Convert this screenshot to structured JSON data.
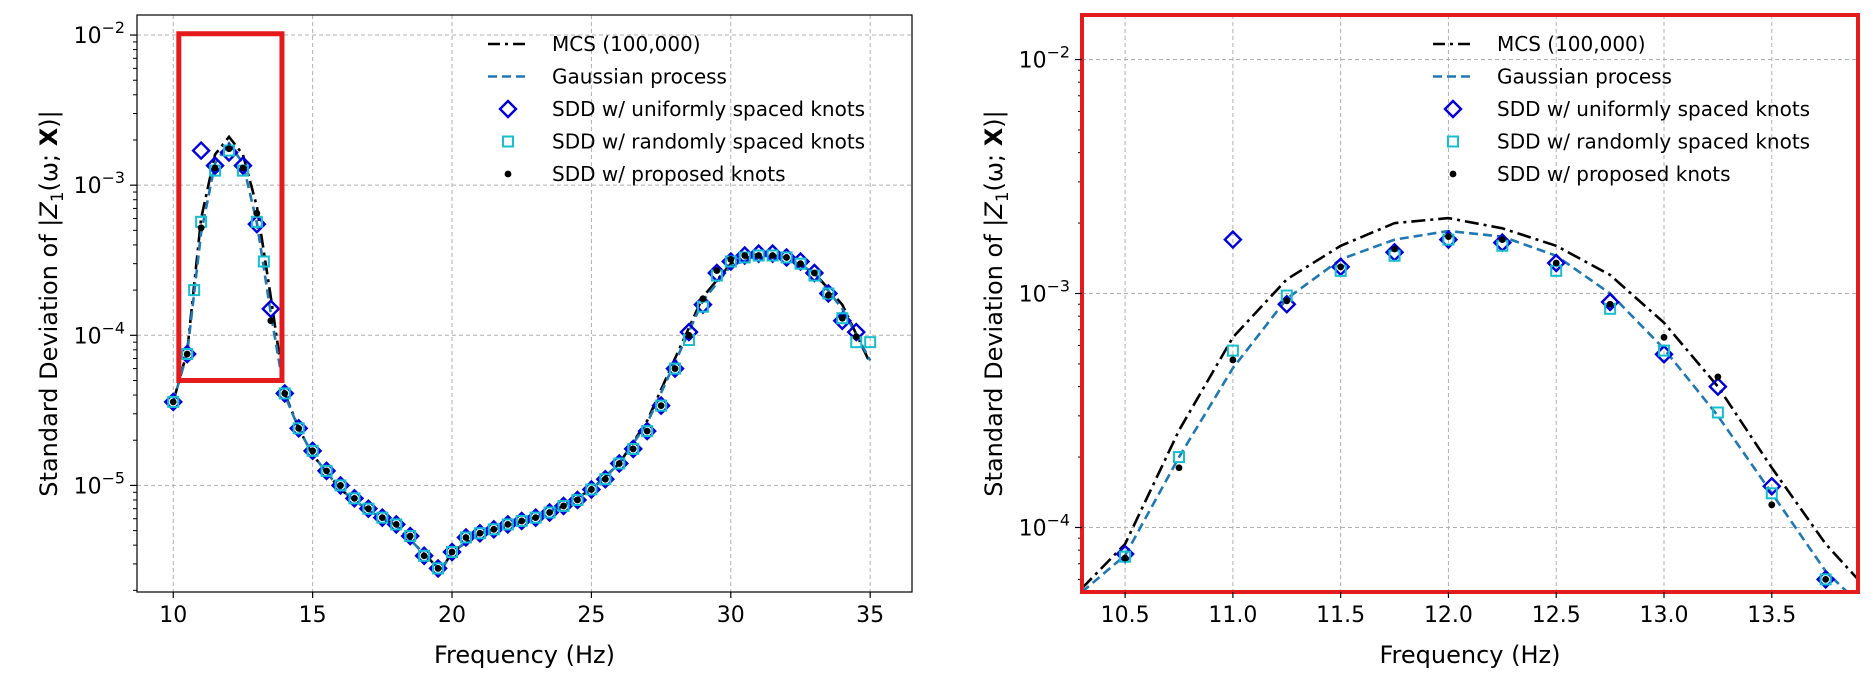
{
  "chart_data": [
    {
      "type": "line",
      "title": "",
      "xlabel": "Frequency (Hz)",
      "ylabel": "Standard Deviation of |Z_1(ω; X)|",
      "ylabel_parts": {
        "prefix": "Standard Deviation of |",
        "var": "Z",
        "sub": "1",
        "mid": "(ω; ",
        "bold": "X",
        "suffix": ")|"
      },
      "y_scale": "log",
      "xlim": [
        8.7,
        36.5
      ],
      "ylim": [
        1.95e-06,
        0.0136
      ],
      "x_ticks": [
        10,
        15,
        20,
        25,
        30,
        35
      ],
      "x_tick_labels": [
        "10",
        "15",
        "20",
        "25",
        "30",
        "35"
      ],
      "y_ticks": [
        1e-05,
        0.0001,
        0.001,
        0.01
      ],
      "y_tick_labels": [
        {
          "base": "10",
          "exp": "−5"
        },
        {
          "base": "10",
          "exp": "−4"
        },
        {
          "base": "10",
          "exp": "−3"
        },
        {
          "base": "10",
          "exp": "−2"
        }
      ],
      "grid": true,
      "legend_position": "top-center",
      "zoom_box": {
        "x": [
          10.2,
          13.9
        ],
        "y": [
          5e-05,
          0.0102
        ],
        "color": "#e41a1c"
      },
      "series": [
        {
          "name": "MCS (100,000)",
          "kind": "line",
          "style": "dashdot",
          "color": "#000000",
          "x": [
            10,
            10.5,
            11,
            11.5,
            12,
            12.5,
            13,
            13.5,
            14,
            14.5,
            15,
            16,
            17,
            18,
            19,
            19.6,
            20,
            21,
            22,
            23,
            24,
            25,
            26,
            27,
            28,
            29,
            30,
            31,
            32,
            33,
            34,
            35
          ],
          "y": [
            3.6e-05,
            7.8e-05,
            0.0006,
            0.0016,
            0.0021,
            0.0016,
            0.00072,
            0.00018,
            4.1e-05,
            2.4e-05,
            1.6e-05,
            9.4e-06,
            6.8e-06,
            5.4e-06,
            3.5e-06,
            2.7e-06,
            3.6e-06,
            4.8e-06,
            5.4e-06,
            6.1e-06,
            7.3e-06,
            9.4e-06,
            1.4e-05,
            2.7e-05,
            7e-05,
            0.00018,
            0.0003,
            0.00035,
            0.00033,
            0.00026,
            0.00016,
            6.5e-05
          ]
        },
        {
          "name": "Gaussian process",
          "kind": "line",
          "style": "dashed",
          "color": "#1f77b4",
          "x": [
            10,
            10.5,
            11,
            11.5,
            12,
            12.5,
            13,
            13.5,
            14,
            14.5,
            15,
            16,
            17,
            18,
            19,
            19.6,
            20,
            21,
            22,
            23,
            24,
            25,
            26,
            27,
            28,
            29,
            30,
            31,
            32,
            33,
            34,
            35
          ],
          "y": [
            3.6e-05,
            7.6e-05,
            0.00048,
            0.0014,
            0.0019,
            0.0014,
            0.00056,
            0.00014,
            4e-05,
            2.4e-05,
            1.6e-05,
            9.4e-06,
            6.8e-06,
            5.4e-06,
            3.5e-06,
            2.7e-06,
            3.6e-06,
            4.8e-06,
            5.4e-06,
            6.1e-06,
            7.3e-06,
            9.4e-06,
            1.4e-05,
            2.6e-05,
            6.6e-05,
            0.00017,
            0.00029,
            0.00034,
            0.00033,
            0.00026,
            0.00015,
            6.8e-05
          ]
        },
        {
          "name": "SDD w/ uniformly spaced knots",
          "kind": "marker",
          "marker": "diamond",
          "color": "#0000dd",
          "x": [
            10,
            10.5,
            11,
            11.5,
            12,
            12.5,
            13,
            13.5,
            14,
            14.5,
            15,
            15.5,
            16,
            16.5,
            17,
            17.5,
            18,
            18.5,
            19,
            19.5,
            20,
            20.5,
            21,
            21.5,
            22,
            22.5,
            23,
            23.5,
            24,
            24.5,
            25,
            25.5,
            26,
            26.5,
            27,
            27.5,
            28,
            28.5,
            29,
            29.5,
            30,
            30.5,
            31,
            31.5,
            32,
            32.5,
            33,
            33.5,
            34,
            34.5
          ],
          "y": [
            3.6e-05,
            7.5e-05,
            0.0017,
            0.00135,
            0.00165,
            0.00135,
            0.00055,
            0.00015,
            4.1e-05,
            2.4e-05,
            1.7e-05,
            1.25e-05,
            1e-05,
            8.2e-06,
            7e-06,
            6.1e-06,
            5.5e-06,
            4.6e-06,
            3.4e-06,
            2.8e-06,
            3.6e-06,
            4.5e-06,
            4.8e-06,
            5.1e-06,
            5.5e-06,
            5.8e-06,
            6.1e-06,
            6.6e-06,
            7.3e-06,
            8e-06,
            9.4e-06,
            1.1e-05,
            1.4e-05,
            1.75e-05,
            2.3e-05,
            3.4e-05,
            6e-05,
            0.000105,
            0.00016,
            0.00026,
            0.00031,
            0.00034,
            0.00035,
            0.00035,
            0.00033,
            0.00031,
            0.00026,
            0.00019,
            0.000125,
            0.000105
          ]
        },
        {
          "name": "SDD w/ randomly spaced knots",
          "kind": "marker",
          "marker": "square",
          "color": "#17becf",
          "x": [
            10,
            10.5,
            10.75,
            11,
            11.5,
            12,
            12.5,
            13,
            13.25,
            14,
            14.5,
            15,
            15.5,
            16,
            16.5,
            17,
            17.5,
            18,
            18.5,
            19,
            19.5,
            20,
            20.5,
            21,
            21.5,
            22,
            22.5,
            23,
            23.5,
            24,
            24.5,
            25,
            25.5,
            26,
            26.5,
            27,
            27.5,
            28,
            28.5,
            29,
            29.5,
            30,
            30.5,
            31,
            31.5,
            32,
            32.5,
            33,
            33.5,
            34,
            34.5,
            35
          ],
          "y": [
            3.6e-05,
            7.5e-05,
            0.0002,
            0.00057,
            0.00125,
            0.0017,
            0.00125,
            0.00057,
            0.00031,
            4.1e-05,
            2.4e-05,
            1.7e-05,
            1.25e-05,
            1e-05,
            8.2e-06,
            7e-06,
            6.1e-06,
            5.5e-06,
            4.6e-06,
            3.4e-06,
            2.8e-06,
            3.6e-06,
            4.5e-06,
            4.8e-06,
            5.1e-06,
            5.5e-06,
            5.8e-06,
            6.1e-06,
            6.6e-06,
            7.3e-06,
            8e-06,
            9.4e-06,
            1.1e-05,
            1.4e-05,
            1.75e-05,
            2.3e-05,
            3.4e-05,
            6e-05,
            9.3e-05,
            0.000155,
            0.00025,
            0.00031,
            0.00033,
            0.00034,
            0.00034,
            0.00033,
            0.0003,
            0.00025,
            0.00019,
            0.00013,
            9e-05,
            9e-05
          ]
        },
        {
          "name": "SDD w/ proposed knots",
          "kind": "marker",
          "marker": "dot",
          "color": "#000000",
          "x": [
            10,
            10.5,
            11,
            11.5,
            12,
            12.5,
            13,
            13.5,
            14,
            14.5,
            15,
            15.5,
            16,
            16.5,
            17,
            17.5,
            18,
            18.5,
            19,
            19.5,
            20,
            20.5,
            21,
            21.5,
            22,
            22.5,
            23,
            23.5,
            24,
            24.5,
            25,
            25.5,
            26,
            26.5,
            27,
            27.5,
            28,
            28.5,
            29,
            29.5,
            30,
            30.5,
            31,
            31.5,
            32,
            32.5,
            33,
            33.5,
            34,
            34.5
          ],
          "y": [
            3.6e-05,
            7.5e-05,
            0.00052,
            0.0013,
            0.00175,
            0.0013,
            0.00065,
            0.000125,
            4.1e-05,
            2.4e-05,
            1.7e-05,
            1.25e-05,
            1e-05,
            8.2e-06,
            7e-06,
            6.1e-06,
            5.5e-06,
            4.6e-06,
            3.4e-06,
            2.8e-06,
            3.6e-06,
            4.5e-06,
            4.8e-06,
            5.1e-06,
            5.5e-06,
            5.8e-06,
            6.1e-06,
            6.6e-06,
            7.3e-06,
            8e-06,
            9.4e-06,
            1.1e-05,
            1.4e-05,
            1.75e-05,
            2.3e-05,
            3.4e-05,
            6e-05,
            0.0001,
            0.000175,
            0.00027,
            0.00032,
            0.00034,
            0.00034,
            0.00034,
            0.00033,
            0.0003,
            0.00026,
            0.000185,
            0.00013,
            9.8e-05
          ]
        }
      ]
    },
    {
      "type": "line",
      "title": "",
      "xlabel": "Frequency (Hz)",
      "ylabel": "Standard Deviation of |Z_1(ω; X)|",
      "ylabel_parts": {
        "prefix": "Standard Deviation of |",
        "var": "Z",
        "sub": "1",
        "mid": "(ω; ",
        "bold": "X",
        "suffix": ")|"
      },
      "y_scale": "log",
      "xlim": [
        10.3,
        13.9
      ],
      "ylim": [
        5.3e-05,
        0.0155
      ],
      "x_ticks": [
        10.5,
        11,
        11.5,
        12,
        12.5,
        13,
        13.5
      ],
      "x_tick_labels": [
        "10.5",
        "11.0",
        "11.5",
        "12.0",
        "12.5",
        "13.0",
        "13.5"
      ],
      "y_ticks": [
        0.0001,
        0.001,
        0.01
      ],
      "y_tick_labels": [
        {
          "base": "10",
          "exp": "−4"
        },
        {
          "base": "10",
          "exp": "−3"
        },
        {
          "base": "10",
          "exp": "−2"
        }
      ],
      "grid": true,
      "legend_position": "top-center",
      "frame_color": "#e41a1c",
      "series": [
        {
          "name": "MCS (100,000)",
          "kind": "line",
          "style": "dashdot",
          "color": "#000000",
          "x": [
            10.3,
            10.5,
            10.75,
            11,
            11.25,
            11.5,
            11.75,
            12,
            12.25,
            12.5,
            12.75,
            13,
            13.25,
            13.5,
            13.75,
            13.9
          ],
          "y": [
            5.5e-05,
            8.5e-05,
            0.00026,
            0.00065,
            0.00115,
            0.0016,
            0.002,
            0.0021,
            0.0019,
            0.0016,
            0.0012,
            0.00075,
            0.0004,
            0.00018,
            8.5e-05,
            6e-05
          ]
        },
        {
          "name": "Gaussian process",
          "kind": "line",
          "style": "dashed",
          "color": "#1f77b4",
          "x": [
            10.3,
            10.5,
            10.75,
            11,
            11.25,
            11.5,
            11.75,
            12,
            12.25,
            12.5,
            12.75,
            13,
            13.25,
            13.5,
            13.75,
            13.85
          ],
          "y": [
            5.3e-05,
            7.6e-05,
            0.0002,
            0.00048,
            0.00095,
            0.0014,
            0.0017,
            0.00185,
            0.00175,
            0.00145,
            0.001,
            0.00058,
            0.0003,
            0.00014,
            6.5e-05,
            5.3e-05
          ]
        },
        {
          "name": "SDD w/ uniformly spaced knots",
          "kind": "marker",
          "marker": "diamond",
          "color": "#0000dd",
          "x": [
            10.5,
            11,
            11.25,
            11.5,
            11.75,
            12,
            12.25,
            12.5,
            12.75,
            13,
            13.25,
            13.5,
            13.75
          ],
          "y": [
            7.7e-05,
            0.0017,
            0.0009,
            0.0013,
            0.0015,
            0.0017,
            0.00165,
            0.00135,
            0.00092,
            0.00055,
            0.0004,
            0.00015,
            6e-05
          ]
        },
        {
          "name": "SDD w/ randomly spaced knots",
          "kind": "marker",
          "marker": "square",
          "color": "#17becf",
          "x": [
            10.5,
            10.75,
            11,
            11.25,
            11.5,
            11.75,
            12,
            12.25,
            12.5,
            12.75,
            13,
            13.25,
            13.5,
            13.75
          ],
          "y": [
            7.5e-05,
            0.0002,
            0.00057,
            0.00098,
            0.00125,
            0.00145,
            0.0017,
            0.0016,
            0.00125,
            0.00086,
            0.00057,
            0.00031,
            0.00014,
            6e-05
          ]
        },
        {
          "name": "SDD w/ proposed knots",
          "kind": "marker",
          "marker": "dot",
          "color": "#000000",
          "x": [
            10.5,
            10.75,
            11,
            11.25,
            11.5,
            11.75,
            12,
            12.25,
            12.5,
            12.75,
            13,
            13.25,
            13.5,
            13.75
          ],
          "y": [
            7.4e-05,
            0.00018,
            0.00052,
            0.00093,
            0.0013,
            0.00155,
            0.00175,
            0.0017,
            0.00135,
            0.0009,
            0.00065,
            0.00044,
            0.000125,
            6e-05
          ]
        }
      ]
    }
  ]
}
